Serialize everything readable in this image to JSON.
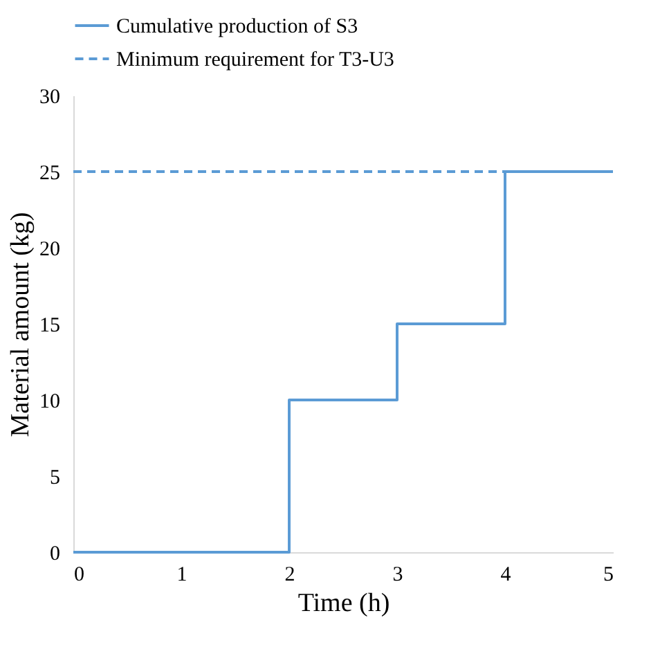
{
  "chart_data": {
    "type": "step",
    "xlabel": "Time (h)",
    "ylabel": "Material amount (kg)",
    "xlim": [
      0,
      5
    ],
    "ylim": [
      0,
      30
    ],
    "xticks": [
      0,
      1,
      2,
      3,
      4,
      5
    ],
    "yticks": [
      0,
      5,
      10,
      15,
      20,
      25,
      30
    ],
    "grid": false,
    "legend": "top",
    "series": [
      {
        "name": "Cumulative production of S3",
        "color": "#5b9bd5",
        "line_style": "solid",
        "x": [
          0,
          2,
          3,
          4,
          5
        ],
        "values": [
          0,
          10,
          15,
          25,
          25
        ]
      },
      {
        "name": "Minimum requirement for T3-U3",
        "color": "#5b9bd5",
        "type": "line",
        "line_style": "dashed",
        "x": [
          0,
          5
        ],
        "values": [
          25,
          25
        ]
      }
    ]
  }
}
